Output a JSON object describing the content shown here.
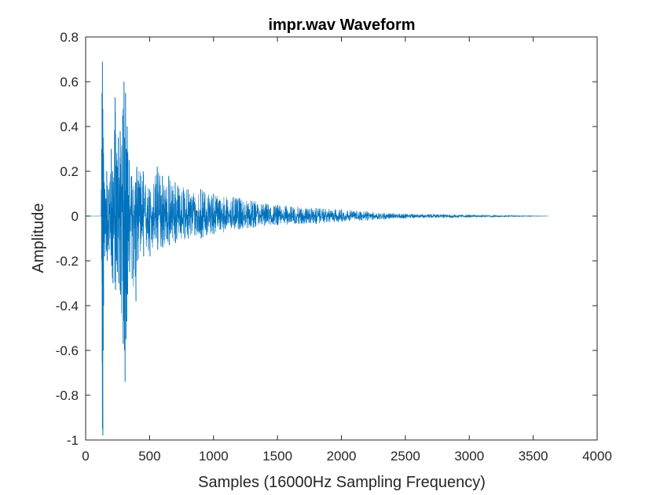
{
  "chart_data": {
    "type": "line",
    "title": "impr.wav Waveform",
    "xlabel": "Samples (16000Hz Sampling Frequency)",
    "ylabel": "Amplitude",
    "xlim": [
      0,
      4000
    ],
    "ylim": [
      -1,
      0.8
    ],
    "xticks": [
      0,
      500,
      1000,
      1500,
      2000,
      2500,
      3000,
      3500,
      4000
    ],
    "xtick_labels": [
      "0",
      "500",
      "1000",
      "1500",
      "2000",
      "2500",
      "3000",
      "3500",
      "4000"
    ],
    "yticks": [
      -1,
      -0.8,
      -0.6,
      -0.4,
      -0.2,
      0,
      0.2,
      0.4,
      0.6,
      0.8
    ],
    "ytick_labels": [
      "-1",
      "-0.8",
      "-0.6",
      "-0.4",
      "-0.2",
      "0",
      "0.2",
      "0.4",
      "0.6",
      "0.8"
    ],
    "grid": false,
    "line_color": "#0072BD",
    "sample_count": 3620,
    "x": [
      0,
      120,
      125,
      128,
      131,
      134,
      137,
      140,
      145,
      150,
      158,
      165,
      180,
      200,
      210,
      230,
      245,
      255,
      270,
      290,
      300,
      305,
      312,
      318,
      325,
      340,
      360,
      390,
      400,
      450,
      500,
      560,
      600,
      650,
      700,
      800,
      900,
      1000,
      1200,
      1500,
      1800,
      2000,
      2200,
      2500,
      2800,
      3000,
      3200,
      3620
    ],
    "peak_max": [
      0,
      0,
      0.3,
      0.55,
      0.69,
      0.48,
      0.35,
      0.28,
      0.15,
      0.12,
      0.08,
      0.2,
      0.12,
      0.3,
      0.2,
      0.53,
      0.25,
      0.35,
      0.38,
      0.45,
      0.6,
      0.35,
      0.55,
      0.3,
      0.4,
      0.25,
      0.18,
      0.15,
      0.22,
      0.2,
      0.12,
      0.22,
      0.18,
      0.18,
      0.15,
      0.12,
      0.12,
      0.1,
      0.08,
      0.05,
      0.035,
      0.03,
      0.02,
      0.01,
      0.008,
      0.006,
      0.004,
      0
    ],
    "peak_min": [
      0,
      0,
      -0.3,
      -0.95,
      -0.98,
      -0.6,
      -0.4,
      -0.12,
      -0.18,
      -0.08,
      -0.15,
      -0.2,
      -0.15,
      -0.22,
      -0.3,
      -0.33,
      -0.25,
      -0.3,
      -0.35,
      -0.57,
      -0.6,
      -0.74,
      -0.55,
      -0.47,
      -0.35,
      -0.25,
      -0.28,
      -0.38,
      -0.2,
      -0.18,
      -0.18,
      -0.15,
      -0.14,
      -0.13,
      -0.12,
      -0.1,
      -0.1,
      -0.08,
      -0.06,
      -0.04,
      -0.035,
      -0.025,
      -0.02,
      -0.01,
      -0.008,
      -0.006,
      -0.004,
      0
    ]
  }
}
